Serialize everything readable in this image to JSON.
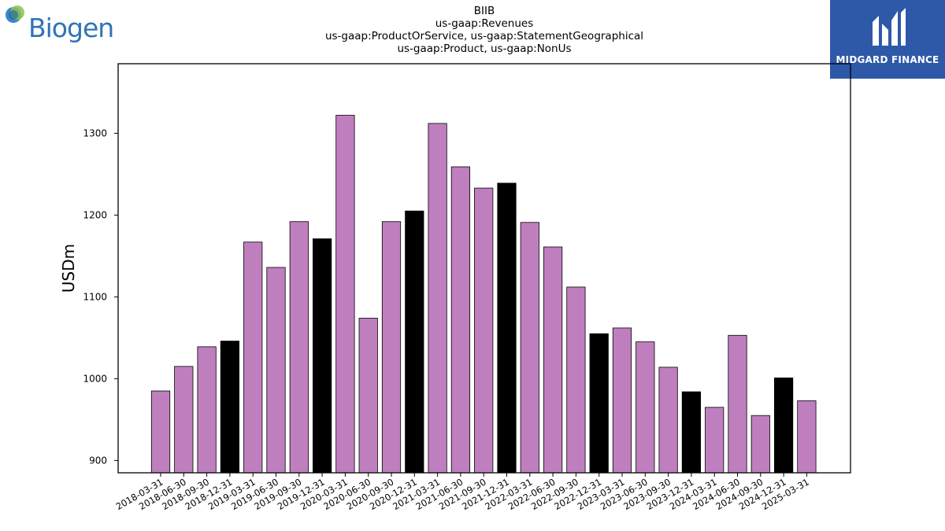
{
  "header": {
    "title_lines": [
      "BIIB",
      "us-gaap:Revenues",
      "us-gaap:ProductOrService, us-gaap:StatementGeographical",
      "us-gaap:Product, us-gaap:NonUs"
    ]
  },
  "logos": {
    "left": {
      "text": "Biogen",
      "icon": "biogen-globe-icon",
      "color": "#2f74b8"
    },
    "right": {
      "text": "MIDGARD FINANCE",
      "icon": "midgard-m-icon",
      "background": "#2e59a8"
    }
  },
  "chart_data": {
    "type": "bar",
    "title": "BIIB\nus-gaap:Revenues\nus-gaap:ProductOrService, us-gaap:StatementGeographical\nus-gaap:Product, us-gaap:NonUs",
    "xlabel": "",
    "ylabel": "USDm",
    "ylim": [
      885,
      1385
    ],
    "yticks": [
      900,
      1000,
      1100,
      1200,
      1300
    ],
    "grid": false,
    "colors": {
      "quarter": "#bf7fbf",
      "year_end": "#000000",
      "edge": "#000000"
    },
    "categories": [
      "2018-03-31",
      "2018-06-30",
      "2018-09-30",
      "2018-12-31",
      "2019-03-31",
      "2019-06-30",
      "2019-09-30",
      "2019-12-31",
      "2020-03-31",
      "2020-06-30",
      "2020-09-30",
      "2020-12-31",
      "2021-03-31",
      "2021-06-30",
      "2021-09-30",
      "2021-12-31",
      "2022-03-31",
      "2022-06-30",
      "2022-09-30",
      "2022-12-31",
      "2023-03-31",
      "2023-06-30",
      "2023-09-30",
      "2023-12-31",
      "2024-03-31",
      "2024-06-30",
      "2024-09-30",
      "2024-12-31",
      "2025-03-31"
    ],
    "values": [
      985,
      1015,
      1039,
      1046,
      1167,
      1136,
      1192,
      1171,
      1322,
      1074,
      1192,
      1205,
      1312,
      1259,
      1233,
      1239,
      1191,
      1161,
      1112,
      1055,
      1062,
      1045,
      1014,
      984,
      965,
      1053,
      955,
      1001,
      973
    ],
    "year_end": [
      false,
      false,
      false,
      true,
      false,
      false,
      false,
      true,
      false,
      false,
      false,
      true,
      false,
      false,
      false,
      true,
      false,
      false,
      false,
      true,
      false,
      false,
      false,
      true,
      false,
      false,
      false,
      true,
      false
    ]
  }
}
